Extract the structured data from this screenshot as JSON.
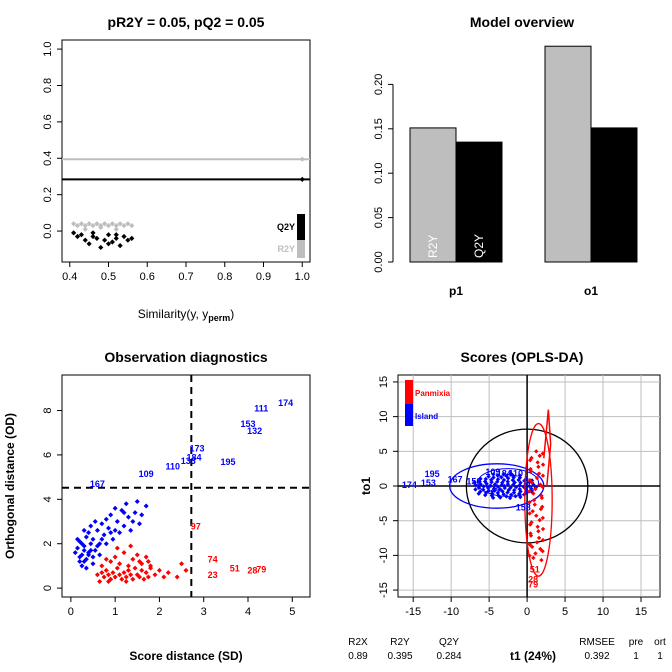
{
  "colors": {
    "black": "#000000",
    "gray": "#bebebe",
    "blue": "#0000ff",
    "red": "#ff0000"
  },
  "chart_data": [
    {
      "id": "permutation",
      "type": "scatter",
      "title": "pR2Y = 0.05, pQ2 = 0.05",
      "xlabel": "Similarity(y, y",
      "xlabel_sub": "perm",
      "xlabel_close": ")",
      "xlim": [
        0.38,
        1.02
      ],
      "ylim": [
        -0.17,
        1.05
      ],
      "x_ticks": [
        "0.4",
        "0.5",
        "0.6",
        "0.7",
        "0.8",
        "0.9",
        "1.0"
      ],
      "x_tick_values": [
        0.4,
        0.5,
        0.6,
        0.7,
        0.8,
        0.9,
        1.0
      ],
      "y_ticks": [
        "0.0",
        "0.2",
        "0.4",
        "0.6",
        "0.8",
        "1.0"
      ],
      "y_tick_values": [
        0,
        0.2,
        0.4,
        0.6,
        0.8,
        1.0
      ],
      "hlines": [
        {
          "name": "R2Y",
          "y": 0.395,
          "color": "#bebebe"
        },
        {
          "name": "Q2Y",
          "y": 0.284,
          "color": "#000000"
        }
      ],
      "series": [
        {
          "name": "R2Y",
          "color": "#bebebe",
          "points": [
            [
              0.41,
              0.04
            ],
            [
              0.42,
              0.03
            ],
            [
              0.43,
              0.04
            ],
            [
              0.44,
              0.03
            ],
            [
              0.45,
              0.04
            ],
            [
              0.46,
              0.03
            ],
            [
              0.47,
              0.04
            ],
            [
              0.48,
              0.03
            ],
            [
              0.49,
              0.04
            ],
            [
              0.5,
              0.03
            ],
            [
              0.51,
              0.04
            ],
            [
              0.52,
              0.03
            ],
            [
              0.53,
              0.04
            ],
            [
              0.54,
              0.03
            ],
            [
              0.55,
              0.04
            ],
            [
              0.44,
              0.01
            ],
            [
              0.48,
              0.02
            ],
            [
              0.52,
              0.01
            ],
            [
              0.56,
              0.03
            ],
            [
              1.0,
              0.395
            ]
          ]
        },
        {
          "name": "Q2Y",
          "color": "#000000",
          "points": [
            [
              0.41,
              -0.01
            ],
            [
              0.42,
              -0.03
            ],
            [
              0.43,
              -0.02
            ],
            [
              0.44,
              -0.05
            ],
            [
              0.45,
              -0.07
            ],
            [
              0.46,
              -0.03
            ],
            [
              0.47,
              -0.04
            ],
            [
              0.48,
              -0.09
            ],
            [
              0.49,
              -0.05
            ],
            [
              0.5,
              -0.02
            ],
            [
              0.51,
              -0.06
            ],
            [
              0.52,
              -0.04
            ],
            [
              0.53,
              -0.08
            ],
            [
              0.54,
              -0.03
            ],
            [
              0.55,
              -0.05
            ],
            [
              0.46,
              -0.01
            ],
            [
              0.5,
              -0.07
            ],
            [
              0.52,
              -0.02
            ],
            [
              0.56,
              -0.04
            ],
            [
              1.0,
              0.284
            ]
          ]
        }
      ],
      "legend_labels": [
        "Q2Y",
        "R2Y"
      ],
      "legend_values": {
        "Q2Y": 0.284,
        "R2Y": 0.395
      }
    },
    {
      "id": "overview",
      "type": "bar",
      "title": "Model overview",
      "categories": [
        "p1",
        "o1"
      ],
      "ylim": [
        0,
        0.25
      ],
      "y_ticks": [
        "0.00",
        "0.05",
        "0.10",
        "0.15",
        "0.20"
      ],
      "y_tick_values": [
        0,
        0.05,
        0.1,
        0.15,
        0.2
      ],
      "series": [
        {
          "name": "R2Y",
          "color": "#bebebe",
          "values": [
            0.151,
            0.243
          ]
        },
        {
          "name": "Q2Y",
          "color": "#000000",
          "values": [
            0.135,
            0.151
          ]
        }
      ]
    },
    {
      "id": "diagnostics",
      "type": "scatter",
      "title": "Observation diagnostics",
      "xlabel": "Score distance (SD)",
      "ylabel": "Orthogonal distance (OD)",
      "xlim": [
        -0.2,
        5.4
      ],
      "ylim": [
        -0.4,
        9.6
      ],
      "x_ticks": [
        "0",
        "1",
        "2",
        "3",
        "4",
        "5"
      ],
      "x_tick_values": [
        0,
        1,
        2,
        3,
        4,
        5
      ],
      "y_ticks": [
        "0",
        "2",
        "4",
        "6",
        "8"
      ],
      "y_tick_values": [
        0,
        2,
        4,
        6,
        8
      ],
      "vline": 2.72,
      "hline": 4.52,
      "labels": [
        {
          "text": "174",
          "x": 4.85,
          "y": 8.2,
          "color": "#0000ff"
        },
        {
          "text": "111",
          "x": 4.3,
          "y": 7.95,
          "color": "#0000ff"
        },
        {
          "text": "153",
          "x": 4.0,
          "y": 7.25,
          "color": "#0000ff"
        },
        {
          "text": "132",
          "x": 4.15,
          "y": 6.95,
          "color": "#0000ff"
        },
        {
          "text": "173",
          "x": 2.85,
          "y": 6.15,
          "color": "#0000ff"
        },
        {
          "text": "184",
          "x": 2.78,
          "y": 5.75,
          "color": "#0000ff"
        },
        {
          "text": "195",
          "x": 3.55,
          "y": 5.55,
          "color": "#0000ff"
        },
        {
          "text": "133",
          "x": 2.65,
          "y": 5.6,
          "color": "#0000ff"
        },
        {
          "text": "110",
          "x": 2.3,
          "y": 5.35,
          "color": "#0000ff"
        },
        {
          "text": "109",
          "x": 1.7,
          "y": 5.0,
          "color": "#0000ff"
        },
        {
          "text": "167",
          "x": 0.6,
          "y": 4.55,
          "color": "#0000ff"
        },
        {
          "text": "97",
          "x": 2.82,
          "y": 2.65,
          "color": "#ff0000"
        },
        {
          "text": "74",
          "x": 3.2,
          "y": 1.15,
          "color": "#ff0000"
        },
        {
          "text": "51",
          "x": 3.7,
          "y": 0.75,
          "color": "#ff0000"
        },
        {
          "text": "28",
          "x": 4.1,
          "y": 0.65,
          "color": "#ff0000"
        },
        {
          "text": "79",
          "x": 4.3,
          "y": 0.7,
          "color": "#ff0000"
        },
        {
          "text": "23",
          "x": 3.2,
          "y": 0.45,
          "color": "#ff0000"
        }
      ],
      "series": [
        {
          "name": "Island",
          "color": "#0000ff",
          "points": [
            [
              0.15,
              1.8
            ],
            [
              0.2,
              2.1
            ],
            [
              0.25,
              1.5
            ],
            [
              0.3,
              1.9
            ],
            [
              0.35,
              2.3
            ],
            [
              0.4,
              1.6
            ],
            [
              0.45,
              2.0
            ],
            [
              0.2,
              1.4
            ],
            [
              0.3,
              1.2
            ],
            [
              0.4,
              2.5
            ],
            [
              0.5,
              2.2
            ],
            [
              0.55,
              1.7
            ],
            [
              0.6,
              2.6
            ],
            [
              0.65,
              2.0
            ],
            [
              0.7,
              2.9
            ],
            [
              0.75,
              2.4
            ],
            [
              0.8,
              3.1
            ],
            [
              0.85,
              2.7
            ],
            [
              0.9,
              3.3
            ],
            [
              0.95,
              2.2
            ],
            [
              1.0,
              3.6
            ],
            [
              1.05,
              3.0
            ],
            [
              1.1,
              2.5
            ],
            [
              1.15,
              3.5
            ],
            [
              1.2,
              2.8
            ],
            [
              1.25,
              3.8
            ],
            [
              1.3,
              3.2
            ],
            [
              1.35,
              2.6
            ],
            [
              1.4,
              3.0
            ],
            [
              1.45,
              3.4
            ],
            [
              1.5,
              3.9
            ],
            [
              1.55,
              2.9
            ],
            [
              1.6,
              3.3
            ],
            [
              1.7,
              3.7
            ],
            [
              0.25,
              1.0
            ],
            [
              0.35,
              1.3
            ],
            [
              0.45,
              1.7
            ],
            [
              0.5,
              1.4
            ],
            [
              0.6,
              1.9
            ],
            [
              0.1,
              1.6
            ],
            [
              0.15,
              2.2
            ],
            [
              0.3,
              2.6
            ],
            [
              0.45,
              2.8
            ],
            [
              0.55,
              3.0
            ],
            [
              0.7,
              2.2
            ],
            [
              0.8,
              2.0
            ],
            [
              1.0,
              2.6
            ],
            [
              1.2,
              3.4
            ],
            [
              0.65,
              1.5
            ],
            [
              0.9,
              2.5
            ],
            [
              0.2,
              1.2
            ],
            [
              0.35,
              0.9
            ],
            [
              0.5,
              1.1
            ],
            [
              0.4,
              1.5
            ],
            [
              0.25,
              2.0
            ],
            [
              0.3,
              1.7
            ]
          ]
        },
        {
          "name": "Panmixia",
          "color": "#ff0000",
          "points": [
            [
              0.6,
              0.6
            ],
            [
              0.7,
              0.7
            ],
            [
              0.75,
              0.5
            ],
            [
              0.8,
              0.8
            ],
            [
              0.85,
              0.6
            ],
            [
              0.9,
              0.4
            ],
            [
              0.95,
              0.7
            ],
            [
              1.0,
              0.5
            ],
            [
              1.05,
              0.9
            ],
            [
              1.1,
              0.6
            ],
            [
              1.15,
              0.4
            ],
            [
              1.2,
              0.7
            ],
            [
              1.25,
              0.5
            ],
            [
              1.3,
              0.8
            ],
            [
              1.35,
              0.6
            ],
            [
              1.4,
              0.4
            ],
            [
              1.45,
              0.9
            ],
            [
              1.5,
              0.6
            ],
            [
              1.55,
              0.5
            ],
            [
              1.6,
              0.8
            ],
            [
              1.65,
              0.4
            ],
            [
              1.7,
              0.7
            ],
            [
              1.75,
              0.5
            ],
            [
              1.8,
              0.9
            ],
            [
              1.9,
              0.6
            ],
            [
              2.0,
              0.8
            ],
            [
              2.1,
              0.5
            ],
            [
              2.2,
              0.7
            ],
            [
              2.4,
              0.5
            ],
            [
              2.6,
              0.8
            ],
            [
              0.9,
              1.2
            ],
            [
              1.0,
              1.4
            ],
            [
              1.1,
              1.1
            ],
            [
              1.2,
              1.6
            ],
            [
              1.3,
              1.0
            ],
            [
              1.4,
              1.3
            ],
            [
              1.5,
              1.5
            ],
            [
              1.6,
              1.1
            ],
            [
              1.7,
              1.4
            ],
            [
              1.8,
              1.0
            ],
            [
              0.7,
              1.0
            ],
            [
              0.8,
              1.3
            ],
            [
              1.05,
              1.8
            ],
            [
              1.35,
              1.9
            ],
            [
              1.55,
              1.2
            ],
            [
              0.65,
              0.3
            ],
            [
              0.85,
              0.3
            ],
            [
              1.25,
              0.3
            ],
            [
              1.75,
              1.2
            ],
            [
              2.5,
              1.1
            ]
          ]
        }
      ]
    },
    {
      "id": "scores",
      "type": "scatter",
      "title": "Scores (OPLS-DA)",
      "xlabel": "t1 (24%)",
      "ylabel": "to1",
      "xlim": [
        -17,
        17.5
      ],
      "ylim": [
        -16,
        16
      ],
      "x_ticks": [
        "-15",
        "-10",
        "-5",
        "0",
        "5",
        "10",
        "15"
      ],
      "x_tick_values": [
        -15,
        -10,
        -5,
        0,
        5,
        10,
        15
      ],
      "y_ticks": [
        "-15",
        "-10",
        "-5",
        "0",
        "5",
        "10",
        "15"
      ],
      "y_tick_values": [
        -15,
        -10,
        -5,
        0,
        5,
        10,
        15
      ],
      "legend": [
        {
          "label": "Panmixia",
          "color": "#ff0000"
        },
        {
          "label": "Island",
          "color": "#0000ff"
        }
      ],
      "labels": [
        {
          "text": "195",
          "x": -12.5,
          "y": 1.3,
          "color": "#0000ff"
        },
        {
          "text": "174",
          "x": -15.5,
          "y": -0.3,
          "color": "#0000ff"
        },
        {
          "text": "153",
          "x": -13.0,
          "y": 0.0,
          "color": "#0000ff"
        },
        {
          "text": "109",
          "x": -4.5,
          "y": 1.6,
          "color": "#0000ff"
        },
        {
          "text": "184",
          "x": -3.0,
          "y": 1.4,
          "color": "#0000ff"
        },
        {
          "text": "167",
          "x": -9.5,
          "y": 0.5,
          "color": "#0000ff"
        },
        {
          "text": "150",
          "x": -7.0,
          "y": 0.2,
          "color": "#0000ff"
        },
        {
          "text": "124",
          "x": -4.5,
          "y": -0.9,
          "color": "#0000ff"
        },
        {
          "text": "110",
          "x": -1.5,
          "y": 1.4,
          "color": "#0000ff"
        },
        {
          "text": "158",
          "x": -0.5,
          "y": -3.5,
          "color": "#0000ff"
        },
        {
          "text": "51",
          "x": 1.0,
          "y": -12.5,
          "color": "#ff0000"
        },
        {
          "text": "28",
          "x": 0.8,
          "y": -13.9,
          "color": "#ff0000"
        },
        {
          "text": "79",
          "x": 0.8,
          "y": -14.6,
          "color": "#ff0000"
        }
      ],
      "footer": {
        "headers": [
          "R2X",
          "R2Y",
          "Q2Y",
          "RMSEE",
          "pre",
          "ort"
        ],
        "values": [
          "0.89",
          "0.395",
          "0.284",
          "0.392",
          "1",
          "1"
        ]
      }
    }
  ]
}
